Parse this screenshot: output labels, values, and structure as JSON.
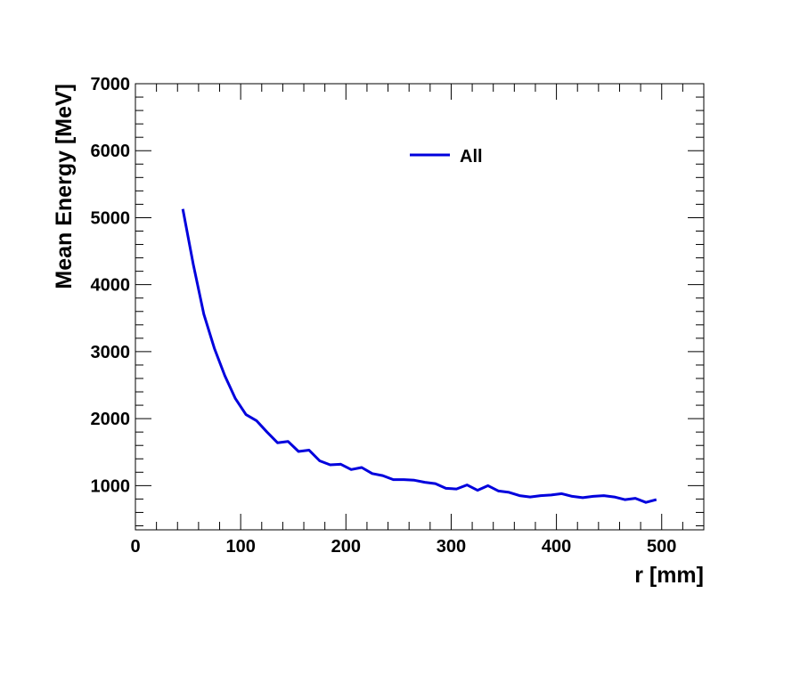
{
  "chart_data": {
    "type": "line",
    "xlabel": "r [mm]",
    "ylabel": "Mean Energy [MeV]",
    "xlim": [
      0,
      540
    ],
    "ylim": [
      340,
      7000
    ],
    "x_ticks": [
      0,
      100,
      200,
      300,
      400,
      500
    ],
    "y_ticks": [
      1000,
      2000,
      3000,
      4000,
      5000,
      6000,
      7000
    ],
    "grid": false,
    "legend_position": "top-center",
    "series": [
      {
        "name": "All",
        "color": "#0000dd",
        "x": [
          45,
          55,
          65,
          75,
          85,
          95,
          105,
          115,
          125,
          135,
          145,
          155,
          165,
          175,
          185,
          195,
          205,
          215,
          225,
          235,
          245,
          255,
          265,
          275,
          285,
          295,
          305,
          315,
          325,
          335,
          345,
          355,
          365,
          375,
          385,
          395,
          405,
          415,
          425,
          435,
          445,
          455,
          465,
          475,
          485,
          495
        ],
        "y": [
          5130,
          4300,
          3560,
          3050,
          2640,
          2300,
          2060,
          1970,
          1800,
          1640,
          1660,
          1510,
          1530,
          1370,
          1310,
          1320,
          1240,
          1270,
          1180,
          1150,
          1090,
          1090,
          1080,
          1050,
          1030,
          960,
          950,
          1010,
          930,
          1000,
          920,
          900,
          850,
          830,
          850,
          860,
          880,
          840,
          820,
          840,
          850,
          830,
          790,
          810,
          750,
          790
        ]
      }
    ]
  }
}
